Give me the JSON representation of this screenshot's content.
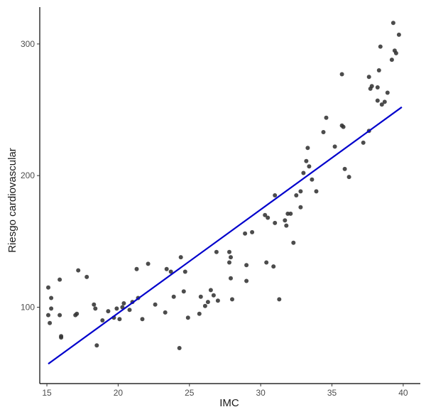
{
  "chart_data": {
    "type": "scatter",
    "title": "",
    "xlabel": "IMC",
    "ylabel": "Riesgo cardiovascular",
    "xlim": [
      14.5,
      41.2
    ],
    "ylim": [
      42,
      328
    ],
    "x_ticks": [
      15,
      20,
      25,
      30,
      35,
      40
    ],
    "y_ticks": [
      100,
      200,
      300
    ],
    "grid": false,
    "legend": "none",
    "point_color": "#333333",
    "line_color": "#0000cc",
    "points": [
      [
        15.1,
        115
      ],
      [
        15.1,
        94
      ],
      [
        15.2,
        88
      ],
      [
        15.3,
        107
      ],
      [
        15.3,
        99
      ],
      [
        15.9,
        121
      ],
      [
        15.9,
        94
      ],
      [
        16.0,
        78
      ],
      [
        16.0,
        77
      ],
      [
        17.0,
        94
      ],
      [
        17.1,
        95
      ],
      [
        17.2,
        128
      ],
      [
        17.8,
        123
      ],
      [
        18.3,
        102
      ],
      [
        18.4,
        99
      ],
      [
        18.5,
        71
      ],
      [
        18.9,
        90
      ],
      [
        19.3,
        97
      ],
      [
        19.7,
        92
      ],
      [
        19.9,
        99
      ],
      [
        20.1,
        91
      ],
      [
        20.3,
        100
      ],
      [
        20.4,
        103
      ],
      [
        20.8,
        98
      ],
      [
        21.0,
        104
      ],
      [
        21.3,
        129
      ],
      [
        21.4,
        107
      ],
      [
        21.7,
        91
      ],
      [
        22.1,
        133
      ],
      [
        22.6,
        102
      ],
      [
        23.3,
        96
      ],
      [
        23.4,
        129
      ],
      [
        23.7,
        127
      ],
      [
        23.9,
        108
      ],
      [
        24.3,
        69
      ],
      [
        24.4,
        138
      ],
      [
        24.6,
        112
      ],
      [
        24.7,
        127
      ],
      [
        24.9,
        92
      ],
      [
        25.7,
        95
      ],
      [
        25.8,
        108
      ],
      [
        26.1,
        101
      ],
      [
        26.3,
        104
      ],
      [
        26.5,
        113
      ],
      [
        26.7,
        109
      ],
      [
        26.9,
        142
      ],
      [
        27.0,
        105
      ],
      [
        27.8,
        142
      ],
      [
        27.8,
        134
      ],
      [
        27.9,
        122
      ],
      [
        27.9,
        138
      ],
      [
        28.0,
        106
      ],
      [
        28.9,
        156
      ],
      [
        29.0,
        120
      ],
      [
        29.0,
        132
      ],
      [
        29.4,
        157
      ],
      [
        30.3,
        170
      ],
      [
        30.4,
        134
      ],
      [
        30.5,
        168
      ],
      [
        30.9,
        131
      ],
      [
        31.0,
        164
      ],
      [
        31.0,
        185
      ],
      [
        31.3,
        106
      ],
      [
        31.7,
        166
      ],
      [
        31.8,
        162
      ],
      [
        31.9,
        171
      ],
      [
        32.1,
        171
      ],
      [
        32.3,
        149
      ],
      [
        32.5,
        185
      ],
      [
        32.8,
        188
      ],
      [
        32.8,
        176
      ],
      [
        33.0,
        202
      ],
      [
        33.2,
        211
      ],
      [
        33.3,
        221
      ],
      [
        33.4,
        207
      ],
      [
        33.6,
        197
      ],
      [
        33.9,
        188
      ],
      [
        34.4,
        233
      ],
      [
        34.6,
        244
      ],
      [
        35.2,
        222
      ],
      [
        35.7,
        277
      ],
      [
        35.7,
        238
      ],
      [
        35.8,
        237
      ],
      [
        35.9,
        205
      ],
      [
        36.2,
        199
      ],
      [
        37.2,
        225
      ],
      [
        37.6,
        234
      ],
      [
        37.6,
        275
      ],
      [
        37.7,
        266
      ],
      [
        37.8,
        268
      ],
      [
        38.2,
        257
      ],
      [
        38.2,
        267
      ],
      [
        38.3,
        280
      ],
      [
        38.4,
        298
      ],
      [
        38.5,
        254
      ],
      [
        38.7,
        256
      ],
      [
        38.9,
        263
      ],
      [
        39.2,
        288
      ],
      [
        39.3,
        316
      ],
      [
        39.4,
        295
      ],
      [
        39.5,
        293
      ],
      [
        39.7,
        307
      ]
    ],
    "fit_line": {
      "x": [
        15.1,
        39.9
      ],
      "y": [
        57,
        252
      ]
    }
  }
}
